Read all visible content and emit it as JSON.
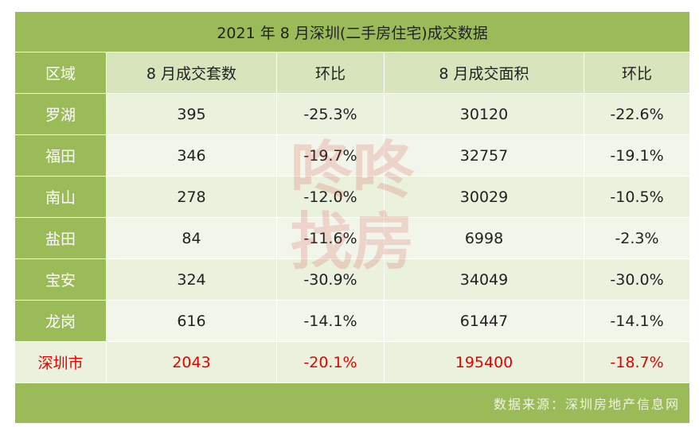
{
  "header": {
    "title": "2021 年 8 月深圳(二手房住宅)成交数据"
  },
  "table": {
    "columns": [
      "区域",
      "8 月成交套数",
      "环比",
      "8 月成交面积",
      "环比"
    ],
    "rows": [
      [
        "罗湖",
        "395",
        "-25.3%",
        "30120",
        "-22.6%"
      ],
      [
        "福田",
        "346",
        "-19.7%",
        "32757",
        "-19.1%"
      ],
      [
        "南山",
        "278",
        "-12.0%",
        "30029",
        "-10.5%"
      ],
      [
        "盐田",
        "84",
        "-11.6%",
        "6998",
        "-2.3%"
      ],
      [
        "宝安",
        "324",
        "-30.9%",
        "34049",
        "-30.0%"
      ],
      [
        "龙岗",
        "616",
        "-14.1%",
        "61447",
        "-14.1%"
      ],
      [
        "深圳市",
        "2043",
        "-20.1%",
        "195400",
        "-18.7%"
      ]
    ]
  },
  "footer": {
    "source": "数据来源：深圳房地产信息网"
  },
  "watermark": "咚咚找房"
}
